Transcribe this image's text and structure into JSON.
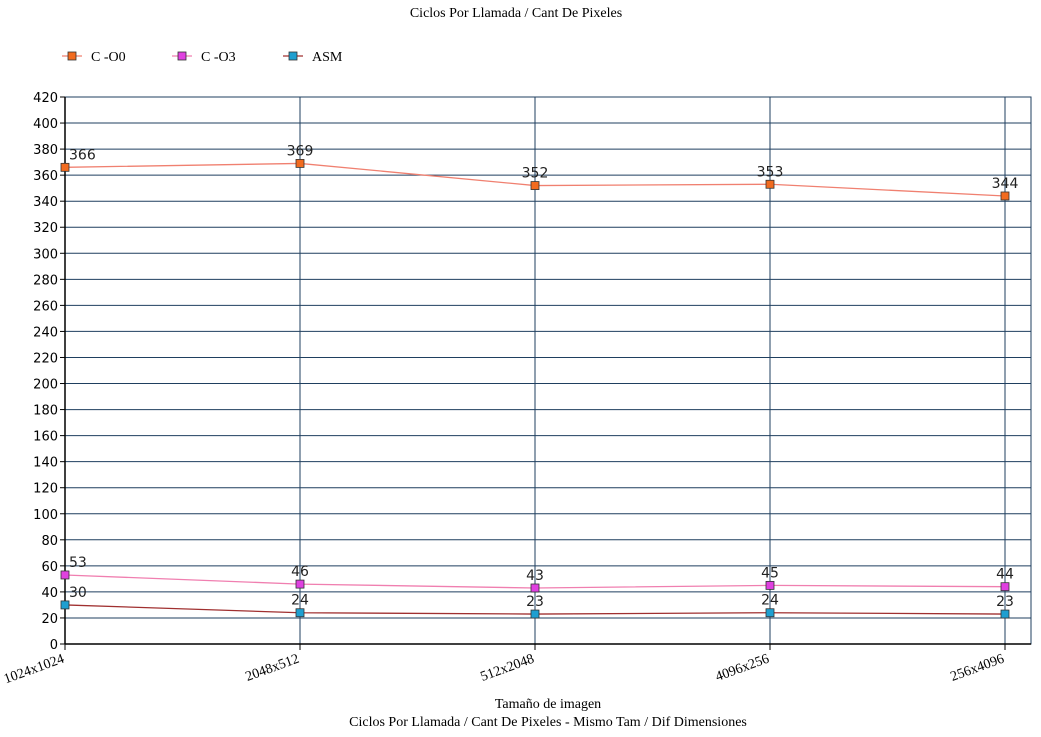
{
  "chart_data": {
    "type": "line",
    "title": "Ciclos Por Llamada / Cant De Pixeles",
    "xlabel": "Tamaño de imagen",
    "subtitle": "Ciclos Por Llamada / Cant De Pixeles - Mismo Tam / Dif Dimensiones",
    "ylabel": "",
    "categories": [
      "1024x1024",
      "2048x512",
      "512x2048",
      "4096x256",
      "256x4096"
    ],
    "ylim": [
      0,
      420
    ],
    "ytick_step": 20,
    "grid": true,
    "legend_position": "top-left",
    "series": [
      {
        "name": "C -O0",
        "values": [
          366,
          369,
          352,
          353,
          344
        ],
        "line_color": "#f08070",
        "marker_color": "#f26b1f"
      },
      {
        "name": "C -O3",
        "values": [
          53,
          46,
          43,
          45,
          44
        ],
        "line_color": "#f07fb0",
        "marker_color": "#e040e0"
      },
      {
        "name": "ASM",
        "values": [
          30,
          24,
          23,
          24,
          23
        ],
        "line_color": "#a03030",
        "marker_color": "#1f9fd0"
      }
    ],
    "colors": {
      "grid": "#1f3f5f",
      "axis": "#000000"
    }
  }
}
